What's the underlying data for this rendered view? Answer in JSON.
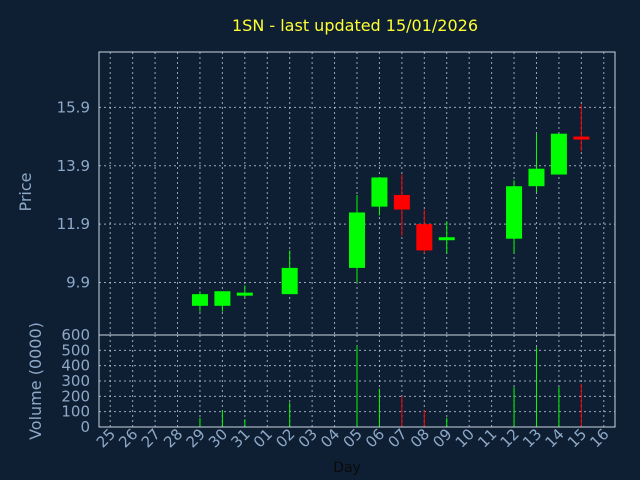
{
  "chart_data": {
    "type": "candlestick",
    "title": "1SN - last updated 15/01/2026",
    "xlabel": "Day",
    "price_panel": {
      "ylabel": "Price",
      "ylim": [
        8.1,
        17.8
      ],
      "yticks": [
        "9.9",
        "11.9",
        "13.9",
        "15.9"
      ],
      "ytick_values": [
        9.9,
        11.9,
        13.9,
        15.9
      ]
    },
    "volume_panel": {
      "ylabel": "Volume (0000)",
      "ylim": [
        0,
        600
      ],
      "yticks": [
        "0",
        "100",
        "200",
        "300",
        "400",
        "500",
        "600"
      ],
      "ytick_values": [
        0,
        100,
        200,
        300,
        400,
        500,
        600
      ]
    },
    "days": [
      "25",
      "26",
      "27",
      "28",
      "29",
      "30",
      "31",
      "01",
      "02",
      "03",
      "04",
      "05",
      "06",
      "07",
      "08",
      "09",
      "10",
      "11",
      "12",
      "13",
      "14",
      "15",
      "16"
    ],
    "candles": [
      {
        "day": "29",
        "open": 9.1,
        "high": 9.6,
        "low": 8.9,
        "close": 9.5,
        "volume": 60
      },
      {
        "day": "30",
        "open": 9.1,
        "high": 9.6,
        "low": 8.9,
        "close": 9.6,
        "volume": 110
      },
      {
        "day": "31",
        "open": 9.5,
        "high": 9.8,
        "low": 9.4,
        "close": 9.5,
        "volume": 50
      },
      {
        "day": "02",
        "open": 9.5,
        "high": 11.0,
        "low": 9.5,
        "close": 10.4,
        "volume": 160
      },
      {
        "day": "05",
        "open": 10.4,
        "high": 12.9,
        "low": 9.9,
        "close": 12.3,
        "volume": 530
      },
      {
        "day": "06",
        "open": 12.5,
        "high": 13.5,
        "low": 12.2,
        "close": 13.5,
        "volume": 250
      },
      {
        "day": "07",
        "open": 12.9,
        "high": 13.6,
        "low": 11.5,
        "close": 12.4,
        "volume": 200
      },
      {
        "day": "08",
        "open": 11.9,
        "high": 12.4,
        "low": 10.9,
        "close": 11.0,
        "volume": 110
      },
      {
        "day": "09",
        "open": 11.4,
        "high": 12.0,
        "low": 10.9,
        "close": 11.4,
        "volume": 60
      },
      {
        "day": "12",
        "open": 11.4,
        "high": 13.4,
        "low": 10.9,
        "close": 13.2,
        "volume": 260
      },
      {
        "day": "13",
        "open": 13.2,
        "high": 15.0,
        "low": 13.0,
        "close": 13.8,
        "volume": 520
      },
      {
        "day": "14",
        "open": 13.6,
        "high": 15.0,
        "low": 13.6,
        "close": 15.0,
        "volume": 260
      },
      {
        "day": "15",
        "open": 14.9,
        "high": 16.0,
        "low": 14.4,
        "close": 14.8,
        "volume": 280
      }
    ],
    "colors": {
      "background": "#0f1f33",
      "up": "#00ff00",
      "down": "#ff0000",
      "grid": "#c8d4e2",
      "title": "#ffff33",
      "axis_text": "#8ea9c7",
      "xlabel": "#0a0a0a"
    },
    "grid": true
  }
}
